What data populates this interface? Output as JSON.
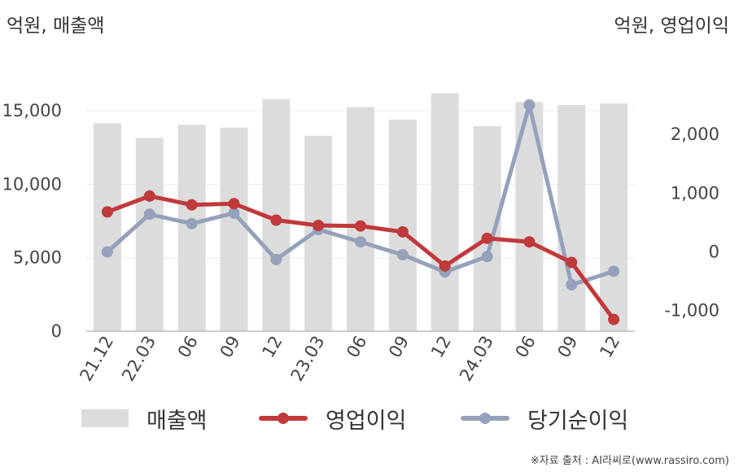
{
  "chart_data": {
    "type": "bar+line",
    "categories": [
      "21.12",
      "22.03",
      "06",
      "09",
      "12",
      "23.03",
      "06",
      "09",
      "12",
      "24.03",
      "06",
      "09",
      "12"
    ],
    "left_axis": {
      "unit_label": "억원, 매출액",
      "ylim": [
        0,
        18000
      ],
      "ticks": [
        0,
        5000,
        10000,
        15000
      ],
      "tick_labels": [
        "0",
        "5,000",
        "10,000",
        "15,000"
      ]
    },
    "right_axis": {
      "unit_label": "억원, 영업이익",
      "ylim": [
        -1350,
        3150
      ],
      "ticks": [
        -1000,
        0,
        1000,
        2000
      ],
      "tick_labels": [
        "-1,000",
        "0",
        "1,000",
        "2,000"
      ]
    },
    "series": [
      {
        "name": "매출액",
        "type": "bar",
        "axis": "left",
        "color": "#dcdcdc",
        "values": [
          14150,
          13150,
          14050,
          13850,
          15800,
          13300,
          15250,
          14400,
          16200,
          13950,
          15600,
          15400,
          15500
        ]
      },
      {
        "name": "영업이익",
        "type": "line",
        "axis": "right",
        "color": "#c0393b",
        "values": [
          680,
          950,
          800,
          820,
          540,
          450,
          440,
          340,
          -240,
          230,
          170,
          -180,
          -1150
        ]
      },
      {
        "name": "당기순이익",
        "type": "line",
        "axis": "right",
        "color": "#95a1bb",
        "values": [
          0,
          640,
          480,
          660,
          -130,
          380,
          170,
          -50,
          -340,
          -80,
          2500,
          -560,
          -330
        ]
      }
    ],
    "grid": true,
    "legend_position": "bottom"
  },
  "source": "※자료 출처 : AI라씨로(www.rassiro.com)"
}
